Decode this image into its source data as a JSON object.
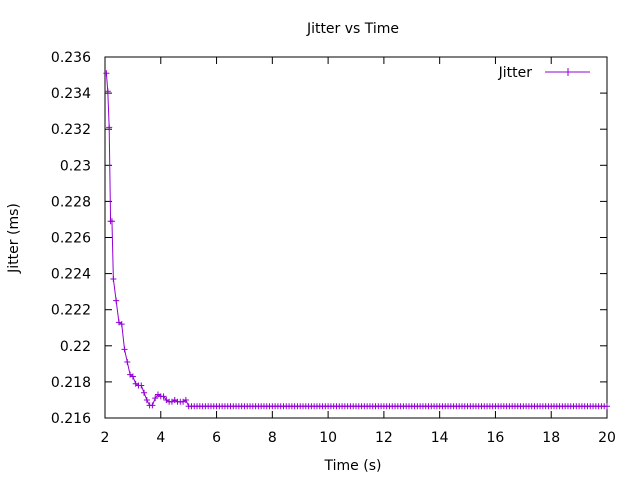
{
  "chart_data": {
    "type": "line",
    "title": "Jitter vs Time",
    "xlabel": "Time (s)",
    "ylabel": "Jitter (ms)",
    "xlim": [
      2,
      20
    ],
    "ylim": [
      0.216,
      0.236
    ],
    "x_ticks": [
      2,
      4,
      6,
      8,
      10,
      12,
      14,
      16,
      18,
      20
    ],
    "y_ticks": [
      0.216,
      0.218,
      0.22,
      0.222,
      0.224,
      0.226,
      0.228,
      0.23,
      0.232,
      0.234,
      0.236
    ],
    "x_tick_labels": [
      "2",
      "4",
      "6",
      "8",
      "10",
      "12",
      "14",
      "16",
      "18",
      "20"
    ],
    "y_tick_labels": [
      "0.216",
      "0.218",
      "0.22",
      "0.222",
      "0.224",
      "0.226",
      "0.228",
      "0.23",
      "0.232",
      "0.234",
      "0.236"
    ],
    "grid": false,
    "legend_position": "top-right",
    "series": [
      {
        "name": "Jitter",
        "color": "#9400d3",
        "marker": "plus",
        "points": [
          [
            2.05,
            0.2351
          ],
          [
            2.1,
            0.2341
          ],
          [
            2.15,
            0.2321
          ],
          [
            2.2,
            0.2269
          ],
          [
            2.25,
            0.2269
          ],
          [
            2.3,
            0.2237
          ],
          [
            2.4,
            0.2225
          ],
          [
            2.5,
            0.2213
          ],
          [
            2.6,
            0.2212
          ],
          [
            2.7,
            0.2198
          ],
          [
            2.8,
            0.2191
          ],
          [
            2.9,
            0.2184
          ],
          [
            3.0,
            0.2183
          ],
          [
            3.1,
            0.2179
          ],
          [
            3.2,
            0.2178
          ],
          [
            3.3,
            0.2178
          ],
          [
            3.4,
            0.2174
          ],
          [
            3.5,
            0.217
          ],
          [
            3.6,
            0.2167
          ],
          [
            3.7,
            0.2167
          ],
          [
            3.8,
            0.2171
          ],
          [
            3.9,
            0.2173
          ],
          [
            4.0,
            0.2172
          ],
          [
            4.1,
            0.2172
          ],
          [
            4.2,
            0.217
          ],
          [
            4.3,
            0.2169
          ],
          [
            4.4,
            0.2169
          ],
          [
            4.5,
            0.217
          ],
          [
            4.6,
            0.2169
          ],
          [
            4.7,
            0.2169
          ],
          [
            4.8,
            0.2169
          ],
          [
            4.9,
            0.217
          ],
          [
            5.0,
            0.21665
          ]
        ],
        "plateau": {
          "x_start": 5.0,
          "x_end": 20.0,
          "step": 0.1,
          "y": 0.21665
        }
      }
    ]
  }
}
